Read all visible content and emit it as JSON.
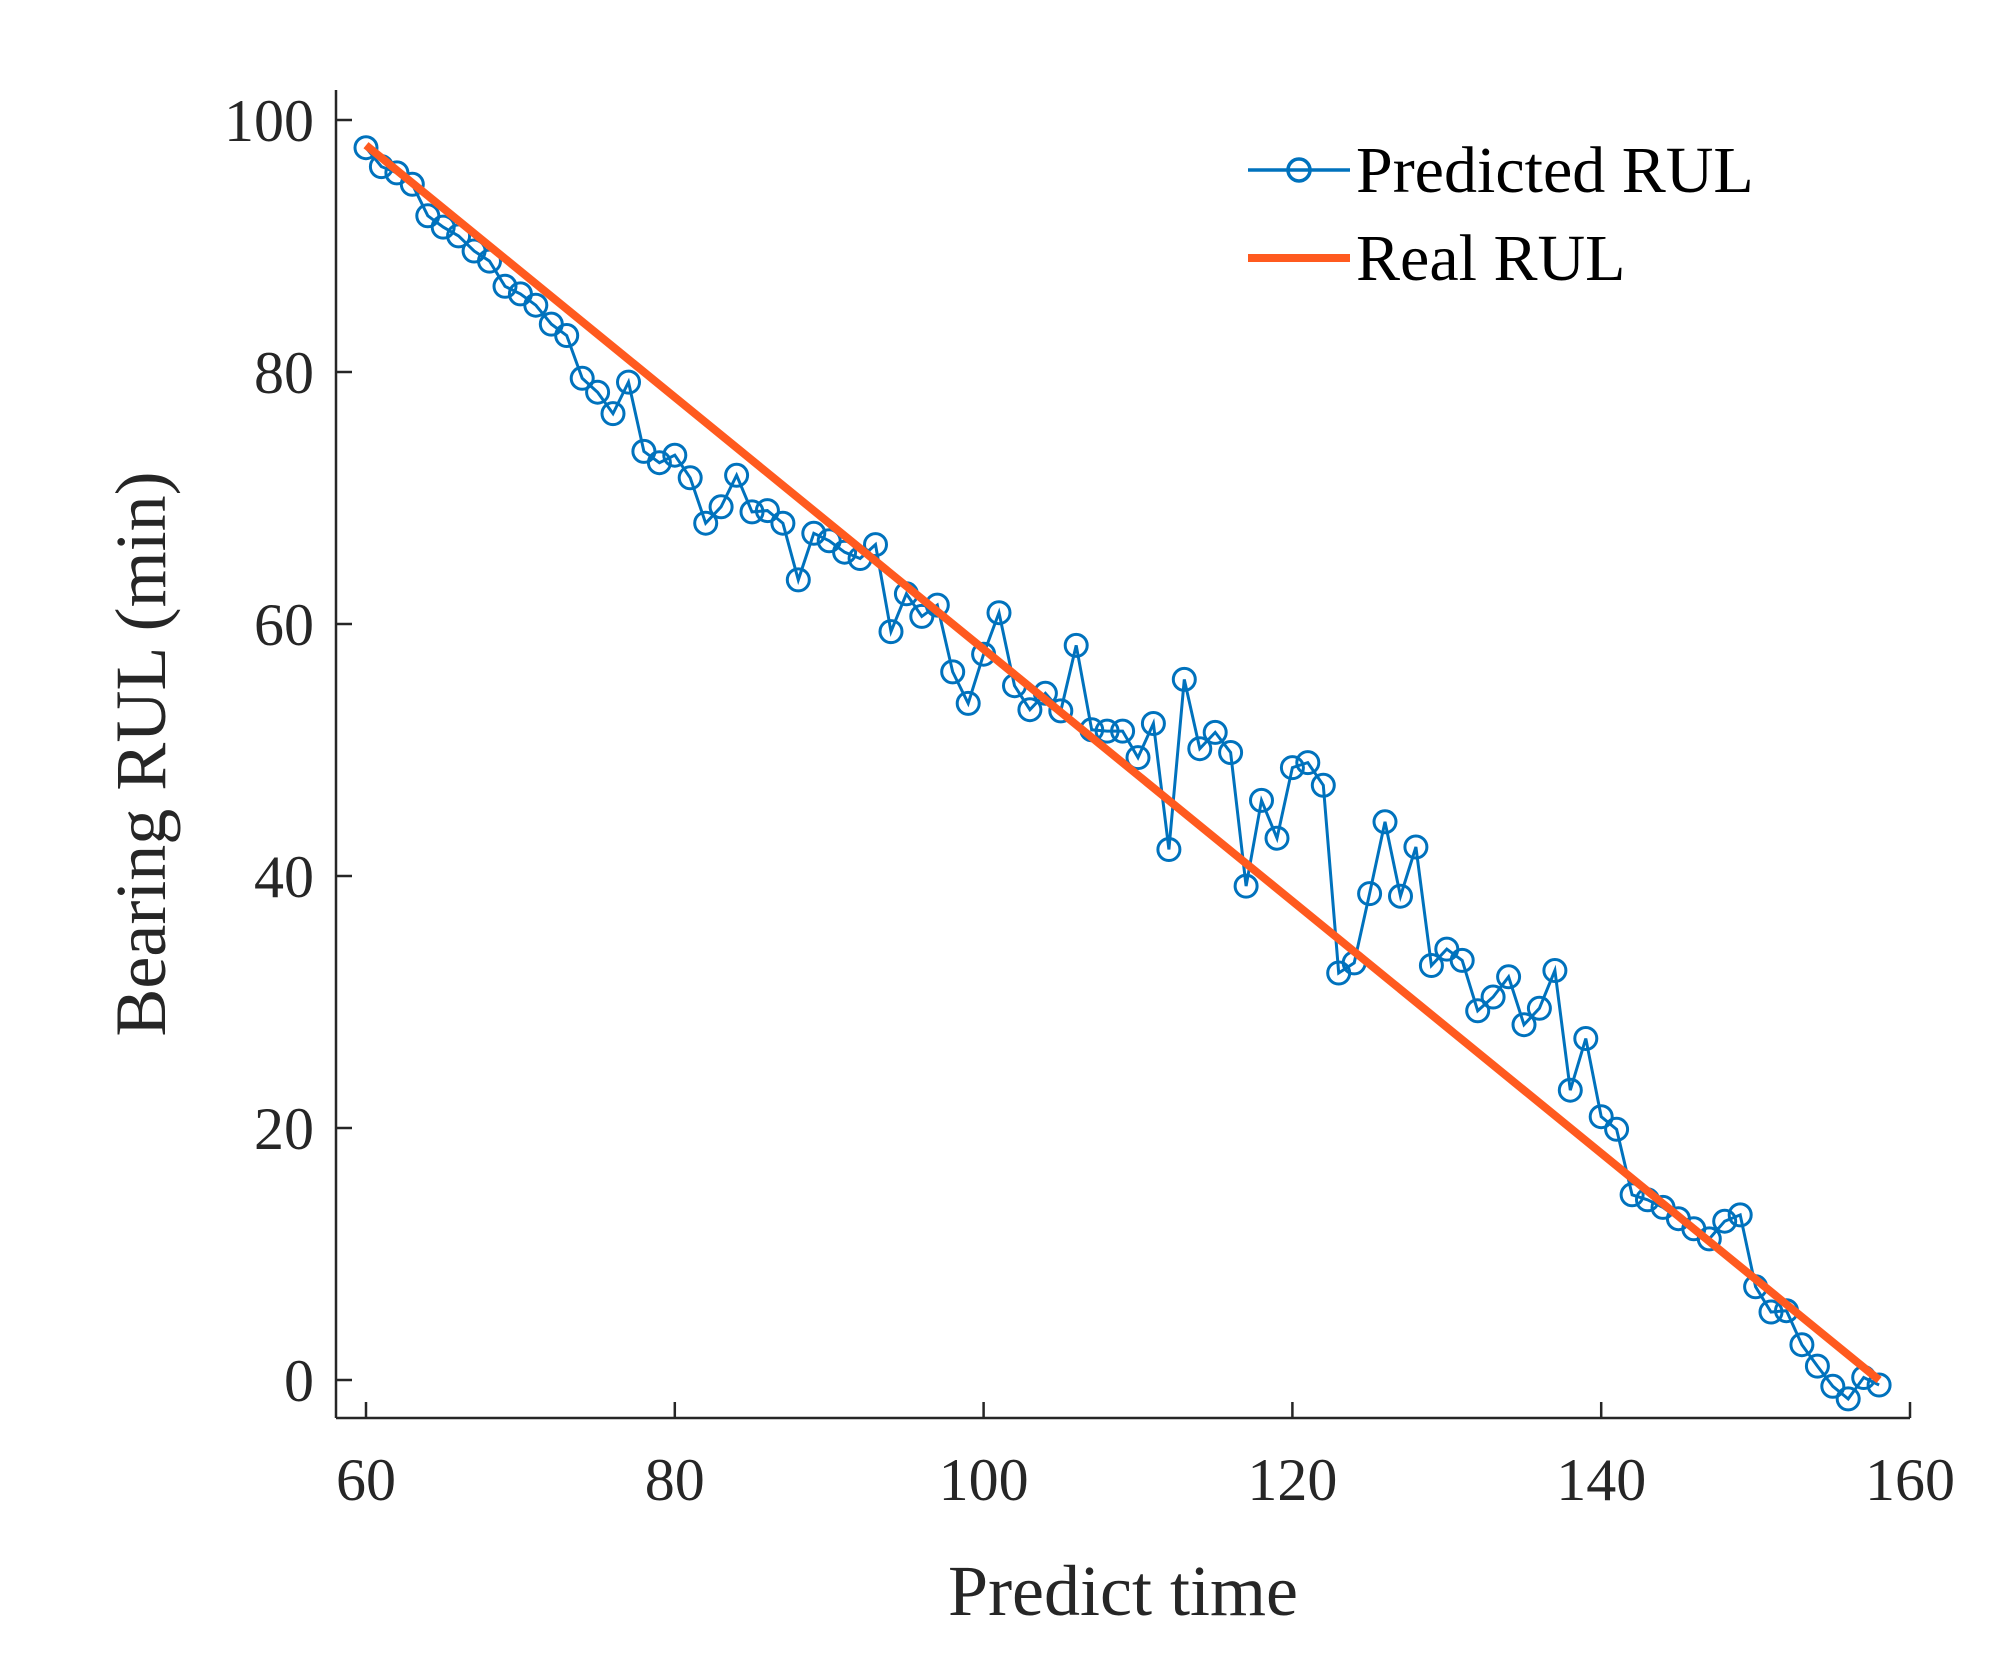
{
  "chart_data": {
    "type": "line",
    "title": "",
    "xlabel": "Predict time",
    "ylabel": "Bearing RUL (min)",
    "xlim": [
      58,
      160
    ],
    "ylim": [
      -3,
      101
    ],
    "xticks": [
      60,
      80,
      100,
      120,
      140,
      160
    ],
    "yticks": [
      0,
      20,
      40,
      60,
      80,
      100
    ],
    "grid": false,
    "legend_position": "top-right",
    "series": [
      {
        "name": "Predicted RUL",
        "color": "#0072BD",
        "marker": "circle",
        "x": [
          60,
          61,
          62,
          63,
          64,
          65,
          66,
          67,
          68,
          69,
          70,
          71,
          72,
          73,
          74,
          75,
          76,
          77,
          78,
          79,
          80,
          81,
          82,
          83,
          84,
          85,
          86,
          87,
          88,
          89,
          90,
          91,
          92,
          93,
          94,
          95,
          96,
          97,
          98,
          99,
          100,
          101,
          102,
          103,
          104,
          105,
          106,
          107,
          108,
          109,
          110,
          111,
          112,
          113,
          114,
          115,
          116,
          117,
          118,
          119,
          120,
          121,
          122,
          123,
          124,
          125,
          126,
          127,
          128,
          129,
          130,
          131,
          132,
          133,
          134,
          135,
          136,
          137,
          138,
          139,
          140,
          141,
          142,
          143,
          144,
          145,
          146,
          147,
          148,
          149,
          150,
          151,
          152,
          153,
          154,
          155,
          156,
          157,
          158
        ],
        "values": [
          97.8,
          96.3,
          95.8,
          94.9,
          92.4,
          91.5,
          90.8,
          89.6,
          88.8,
          86.8,
          86.2,
          85.3,
          83.8,
          82.9,
          79.5,
          78.4,
          76.7,
          79.2,
          73.7,
          72.8,
          73.4,
          71.6,
          68.0,
          69.3,
          71.8,
          68.9,
          69.0,
          68.0,
          63.5,
          67.2,
          66.6,
          65.7,
          65.2,
          66.3,
          59.4,
          62.4,
          60.6,
          61.5,
          56.2,
          53.7,
          57.6,
          60.9,
          55.1,
          53.2,
          54.5,
          53.1,
          58.3,
          51.6,
          51.5,
          51.5,
          49.4,
          52.1,
          42.1,
          55.6,
          50.1,
          51.4,
          49.8,
          39.2,
          46.0,
          43.0,
          48.6,
          49.0,
          47.2,
          32.3,
          33.1,
          38.6,
          44.3,
          38.4,
          42.3,
          32.9,
          34.2,
          33.3,
          29.3,
          30.4,
          32.0,
          28.2,
          29.5,
          32.5,
          23.0,
          27.1,
          20.9,
          19.9,
          14.7,
          14.3,
          13.7,
          12.8,
          12.0,
          11.2,
          12.6,
          13.1,
          7.4,
          5.4,
          5.5,
          2.8,
          1.1,
          -0.5,
          -1.5,
          0.2,
          -0.4
        ]
      },
      {
        "name": "Real RUL",
        "color": "#FF5A1F",
        "marker": "none",
        "x": [
          60,
          158
        ],
        "values": [
          98,
          0
        ]
      }
    ]
  }
}
